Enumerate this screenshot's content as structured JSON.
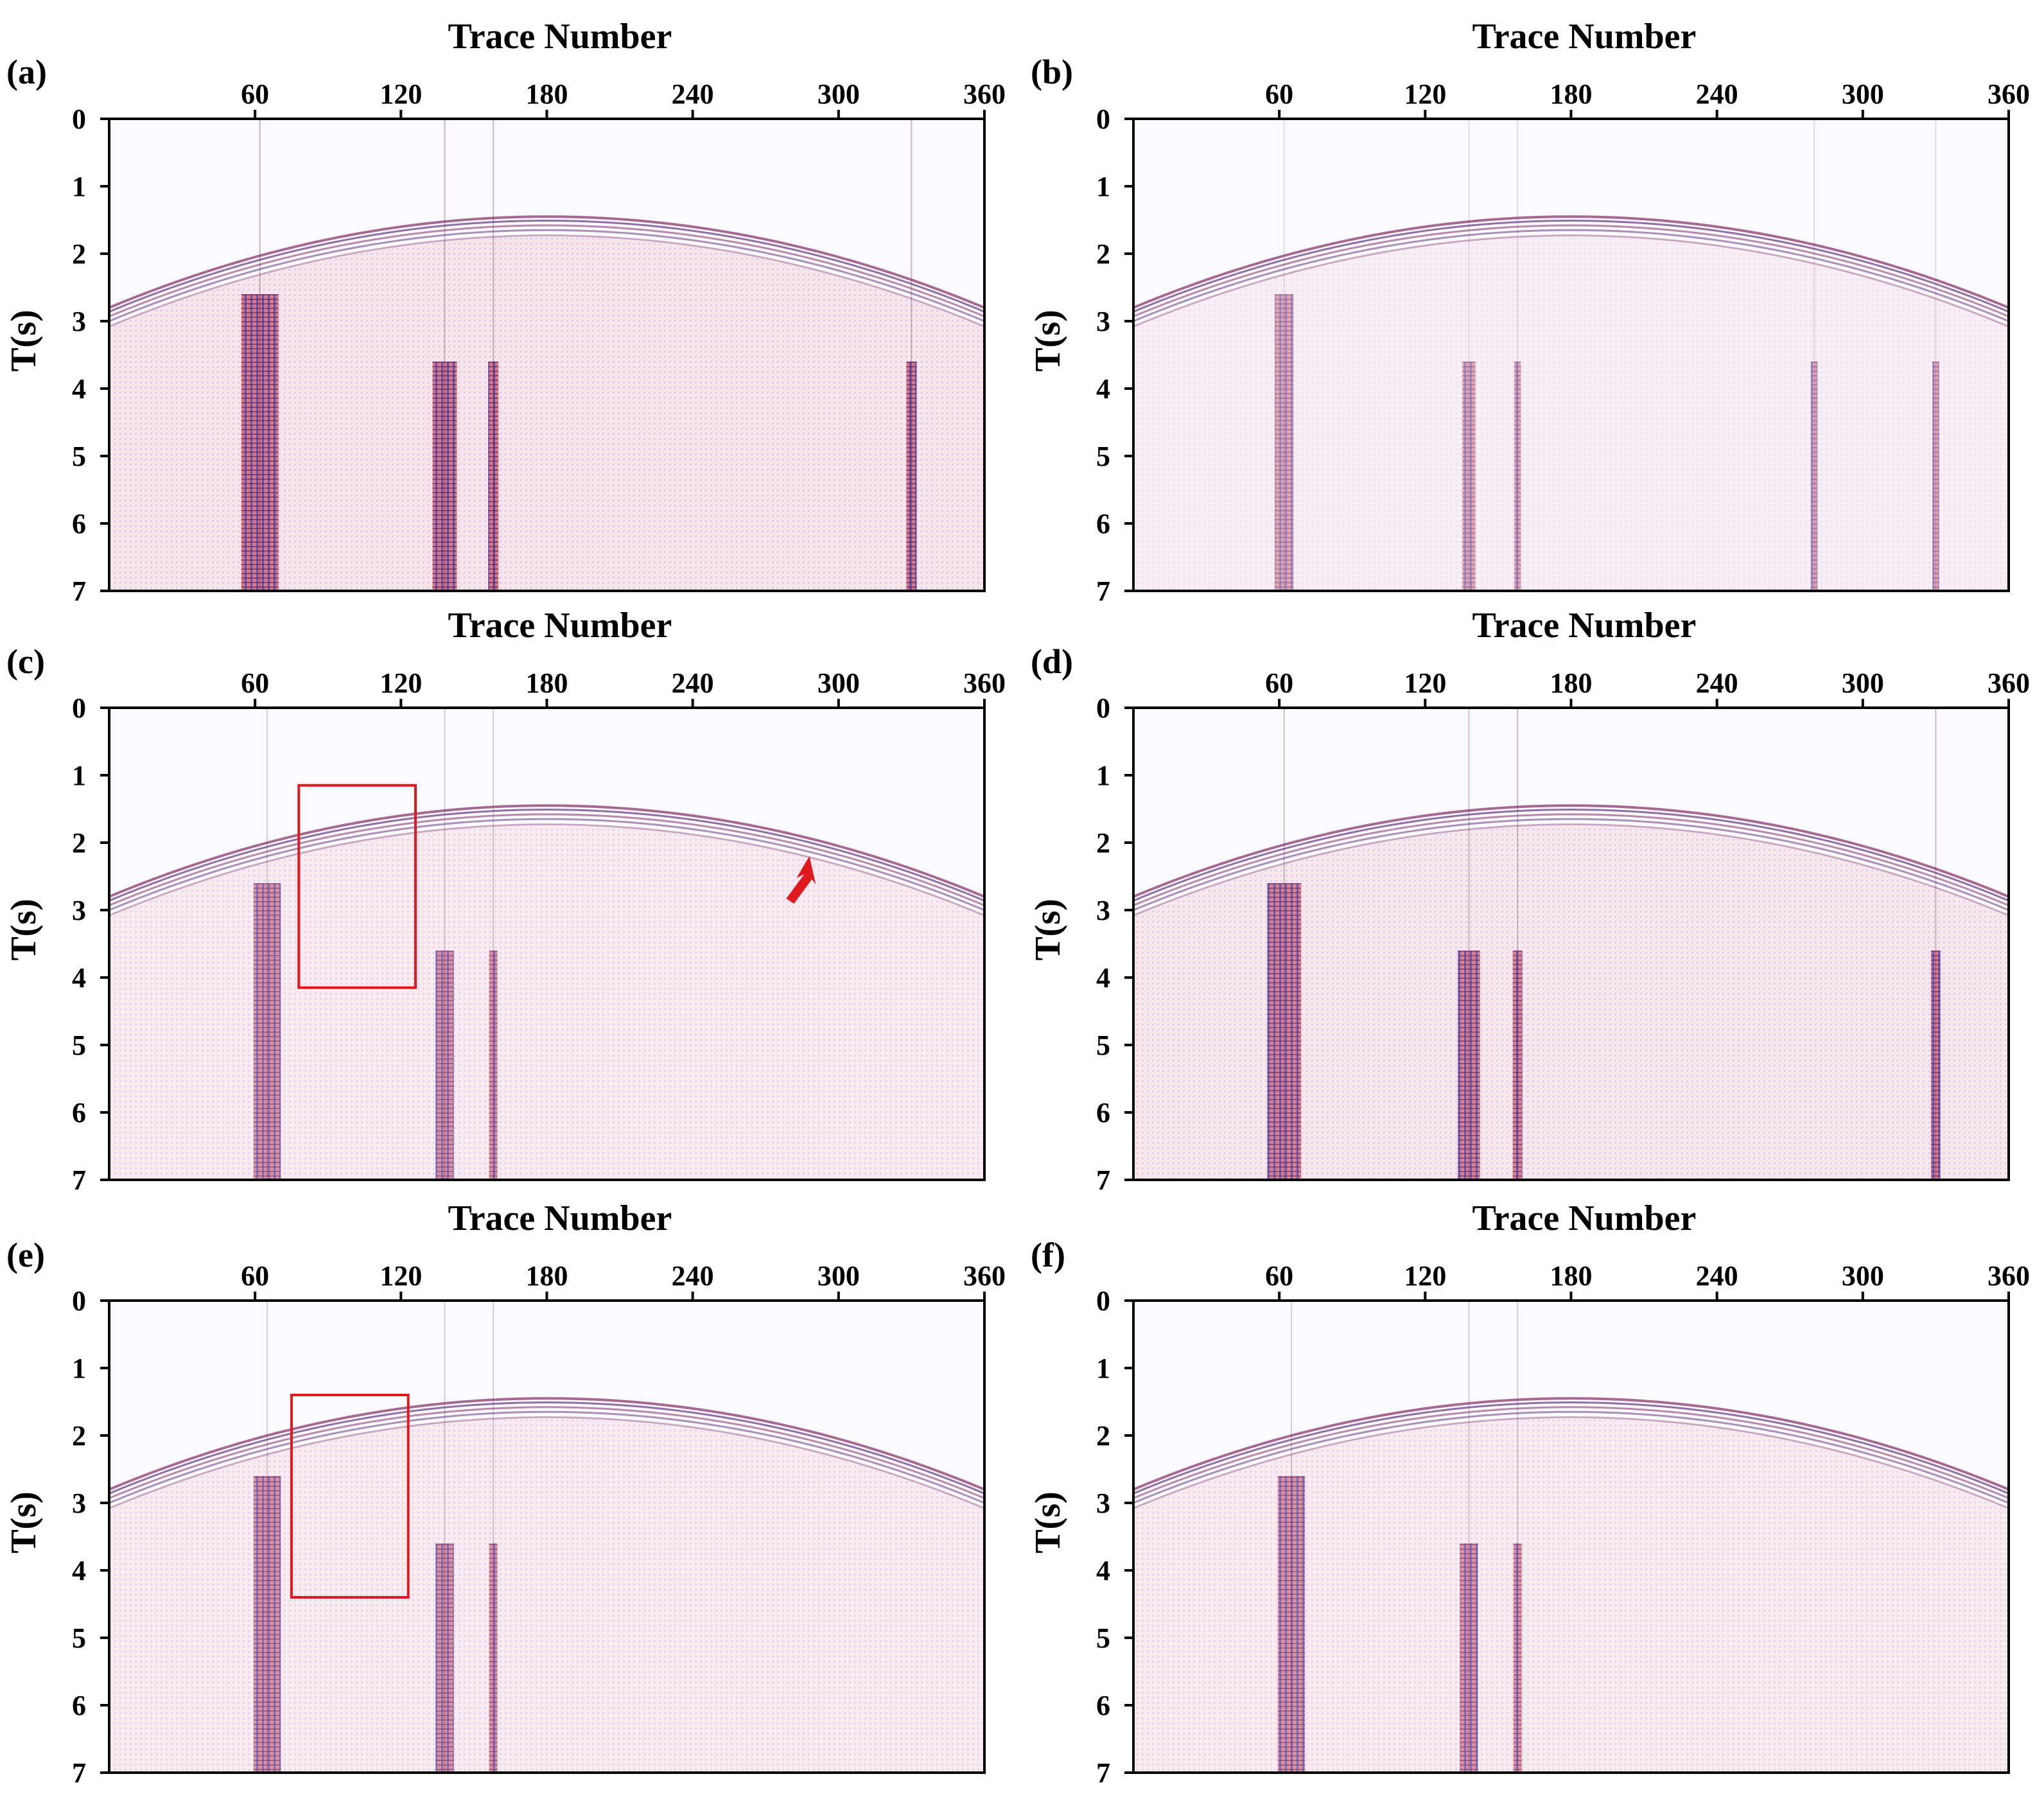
{
  "chart_data": [
    {
      "type": "heatmap",
      "panel_label": "(a)",
      "xlabel": "Trace Number",
      "ylabel": "T(s)",
      "x_ticks": [
        "60",
        "120",
        "180",
        "240",
        "300",
        "360"
      ],
      "y_ticks": [
        "0",
        "1",
        "2",
        "3",
        "4",
        "5",
        "6",
        "7"
      ],
      "xlim": [
        0,
        360
      ],
      "ylim": [
        0,
        7
      ],
      "noise_traces": [
        62,
        138,
        158,
        330
      ],
      "noise_level": 1.0,
      "annotations": []
    },
    {
      "type": "heatmap",
      "panel_label": "(b)",
      "xlabel": "Trace Number",
      "ylabel": "T(s)",
      "x_ticks": [
        "60",
        "120",
        "180",
        "240",
        "300",
        "360"
      ],
      "y_ticks": [
        "0",
        "1",
        "2",
        "3",
        "4",
        "5",
        "6",
        "7"
      ],
      "xlim": [
        0,
        360
      ],
      "ylim": [
        0,
        7
      ],
      "noise_traces": [
        62,
        138,
        158,
        280,
        330
      ],
      "noise_level": 0.45,
      "annotations": []
    },
    {
      "type": "heatmap",
      "panel_label": "(c)",
      "xlabel": "Trace Number",
      "ylabel": "T(s)",
      "x_ticks": [
        "60",
        "120",
        "180",
        "240",
        "300",
        "360"
      ],
      "y_ticks": [
        "0",
        "1",
        "2",
        "3",
        "4",
        "5",
        "6",
        "7"
      ],
      "xlim": [
        0,
        360
      ],
      "ylim": [
        0,
        7
      ],
      "noise_traces": [
        65,
        138,
        158
      ],
      "noise_level": 0.7,
      "annotations": [
        {
          "kind": "box",
          "x": [
            78,
            126
          ],
          "t": [
            1.15,
            4.15
          ]
        },
        {
          "kind": "arrow",
          "x": 288,
          "t": 2.2
        }
      ]
    },
    {
      "type": "heatmap",
      "panel_label": "(d)",
      "xlabel": "Trace Number",
      "ylabel": "T(s)",
      "x_ticks": [
        "60",
        "120",
        "180",
        "240",
        "300",
        "360"
      ],
      "y_ticks": [
        "0",
        "1",
        "2",
        "3",
        "4",
        "5",
        "6",
        "7"
      ],
      "xlim": [
        0,
        360
      ],
      "ylim": [
        0,
        7
      ],
      "noise_traces": [
        62,
        138,
        158,
        330
      ],
      "noise_level": 0.9,
      "annotations": []
    },
    {
      "type": "heatmap",
      "panel_label": "(e)",
      "xlabel": "Trace Number",
      "ylabel": "T(s)",
      "x_ticks": [
        "60",
        "120",
        "180",
        "240",
        "300",
        "360"
      ],
      "y_ticks": [
        "0",
        "1",
        "2",
        "3",
        "4",
        "5",
        "6",
        "7"
      ],
      "xlim": [
        0,
        360
      ],
      "ylim": [
        0,
        7
      ],
      "noise_traces": [
        65,
        138,
        158
      ],
      "noise_level": 0.7,
      "annotations": [
        {
          "kind": "box",
          "x": [
            75,
            123
          ],
          "t": [
            1.4,
            4.4
          ]
        }
      ]
    },
    {
      "type": "heatmap",
      "panel_label": "(f)",
      "xlabel": "Trace Number",
      "ylabel": "T(s)",
      "x_ticks": [
        "60",
        "120",
        "180",
        "240",
        "300",
        "360"
      ],
      "y_ticks": [
        "0",
        "1",
        "2",
        "3",
        "4",
        "5",
        "6",
        "7"
      ],
      "xlim": [
        0,
        360
      ],
      "ylim": [
        0,
        7
      ],
      "noise_traces": [
        65,
        138,
        158
      ],
      "noise_level": 0.7,
      "annotations": []
    }
  ]
}
